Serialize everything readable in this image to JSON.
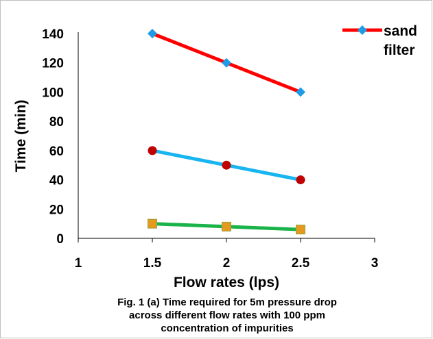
{
  "chart_data": {
    "type": "line",
    "title": "",
    "xlabel": "Flow rates (lps)",
    "ylabel": "Time (min)",
    "xlim": [
      1,
      3
    ],
    "ylim": [
      0,
      140
    ],
    "xticks": [
      "1",
      "1.5",
      "2",
      "2.5",
      "3"
    ],
    "yticks": [
      "0",
      "20",
      "40",
      "60",
      "80",
      "100",
      "120",
      "140"
    ],
    "grid": false,
    "legend": {
      "placement": "top-right",
      "lines": [
        "sand",
        "filter"
      ]
    },
    "series": [
      {
        "name": "sand filter",
        "x": [
          1.5,
          2,
          2.5
        ],
        "y": [
          140,
          120,
          100
        ],
        "color": "#ff0000",
        "marker": "diamond",
        "marker_color": "#1f9be6"
      },
      {
        "x": [
          1.5,
          2,
          2.5
        ],
        "y": [
          60,
          50,
          40
        ],
        "color": "#19b5f0",
        "marker": "circle",
        "marker_color": "#c00000"
      },
      {
        "x": [
          1.5,
          2,
          2.5
        ],
        "y": [
          10,
          8,
          6
        ],
        "color": "#19b34a",
        "marker": "square",
        "marker_color": "#e39a1f"
      }
    ]
  },
  "caption": {
    "lines": [
      "Fig. 1 (a) Time required for 5m pressure drop",
      "across different flow rates with 100 ppm",
      "concentration of impurities"
    ]
  }
}
